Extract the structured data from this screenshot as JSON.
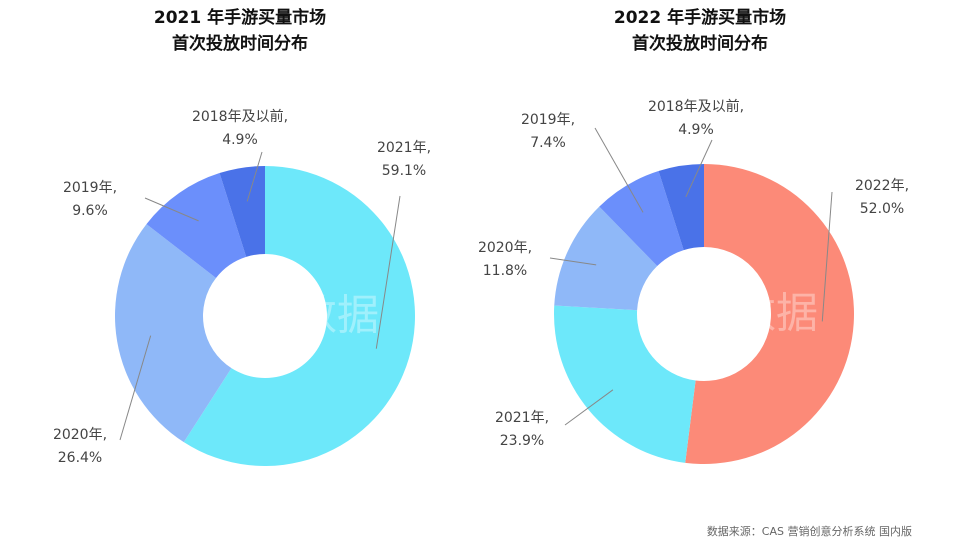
{
  "chart_data": [
    {
      "type": "donut",
      "title": "2021 年手游买量市场",
      "subtitle": "首次投放时间分布",
      "categories": [
        "2021年,",
        "2020年,",
        "2019年,",
        "2018年及以前,"
      ],
      "values": [
        59.1,
        26.4,
        9.6,
        4.9
      ],
      "value_labels": [
        "59.1%",
        "26.4%",
        "9.6%",
        "4.9%"
      ],
      "colors": [
        "#6de8fa",
        "#8fb8f8",
        "#6b8ffb",
        "#4a72e8"
      ]
    },
    {
      "type": "donut",
      "title": "2022 年手游买量市场",
      "subtitle": "首次投放时间分布",
      "categories": [
        "2022年,",
        "2021年,",
        "2020年,",
        "2019年,",
        "2018年及以前,"
      ],
      "values": [
        52.0,
        23.9,
        11.8,
        7.4,
        4.9
      ],
      "value_labels": [
        "52.0%",
        "23.9%",
        "11.8%",
        "7.4%",
        "4.9%"
      ],
      "colors": [
        "#fc8a78",
        "#6de8fa",
        "#8fb8f8",
        "#6b8ffb",
        "#4a72e8"
      ]
    }
  ],
  "watermark": "热云数据",
  "source": "数据来源：CAS 营销创意分析系统 国内版"
}
